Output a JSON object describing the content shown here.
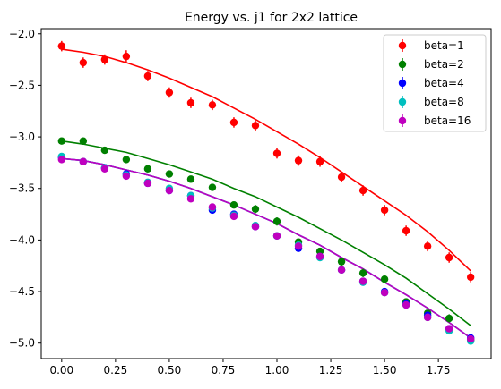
{
  "chart_data": {
    "type": "scatter",
    "title": "Energy vs. j1 for 2x2 lattice",
    "xlabel": "",
    "ylabel": "",
    "xlim": [
      -0.095,
      1.995
    ],
    "ylim": [
      -5.15,
      -1.95
    ],
    "xticks": [
      0.0,
      0.25,
      0.5,
      0.75,
      1.0,
      1.25,
      1.5,
      1.75
    ],
    "xtick_labels": [
      "0.00",
      "0.25",
      "0.50",
      "0.75",
      "1.00",
      "1.25",
      "1.50",
      "1.75"
    ],
    "yticks": [
      -2.0,
      -2.5,
      -3.0,
      -3.5,
      -4.0,
      -4.5,
      -5.0
    ],
    "ytick_labels": [
      "−2.0",
      "−2.5",
      "−3.0",
      "−3.5",
      "−4.0",
      "−4.5",
      "−5.0"
    ],
    "grid": false,
    "legend_position": "top-right",
    "x": [
      0.0,
      0.1,
      0.2,
      0.3,
      0.4,
      0.5,
      0.6,
      0.7,
      0.8,
      0.9,
      1.0,
      1.1,
      1.2,
      1.3,
      1.4,
      1.5,
      1.6,
      1.7,
      1.8,
      1.9
    ],
    "series": [
      {
        "name": "beta=1",
        "color": "#ff0000",
        "y": [
          -2.12,
          -2.28,
          -2.25,
          -2.22,
          -2.41,
          -2.57,
          -2.67,
          -2.69,
          -2.86,
          -2.89,
          -3.16,
          -3.23,
          -3.24,
          -3.39,
          -3.52,
          -3.71,
          -3.91,
          -4.06,
          -4.17,
          -4.36
        ],
        "yerr": [
          0.05,
          0.05,
          0.05,
          0.06,
          0.05,
          0.05,
          0.05,
          0.05,
          0.05,
          0.05,
          0.05,
          0.05,
          0.05,
          0.05,
          0.05,
          0.05,
          0.05,
          0.05,
          0.05,
          0.05
        ],
        "fit": [
          -2.15,
          -2.18,
          -2.22,
          -2.28,
          -2.35,
          -2.43,
          -2.52,
          -2.61,
          -2.72,
          -2.83,
          -2.95,
          -3.07,
          -3.2,
          -3.34,
          -3.48,
          -3.62,
          -3.76,
          -3.92,
          -4.1,
          -4.3
        ]
      },
      {
        "name": "beta=2",
        "color": "#008000",
        "y": [
          -3.04,
          -3.04,
          -3.13,
          -3.22,
          -3.31,
          -3.36,
          -3.41,
          -3.49,
          -3.66,
          -3.7,
          -3.82,
          -4.02,
          -4.11,
          -4.21,
          -4.32,
          -4.38,
          -4.6,
          -4.71,
          -4.76,
          -4.97
        ],
        "yerr": [
          0.03,
          0.03,
          0.03,
          0.03,
          0.03,
          0.03,
          0.03,
          0.03,
          0.03,
          0.04,
          0.04,
          0.03,
          0.03,
          0.04,
          0.04,
          0.03,
          0.03,
          0.03,
          0.04,
          0.04
        ],
        "fit": [
          -3.04,
          -3.07,
          -3.11,
          -3.15,
          -3.21,
          -3.27,
          -3.34,
          -3.41,
          -3.5,
          -3.58,
          -3.68,
          -3.78,
          -3.89,
          -4.0,
          -4.12,
          -4.24,
          -4.37,
          -4.52,
          -4.67,
          -4.83
        ]
      },
      {
        "name": "beta=4",
        "color": "#0000ff",
        "y": [
          -3.2,
          -3.24,
          -3.3,
          -3.36,
          -3.45,
          -3.52,
          -3.57,
          -3.71,
          -3.75,
          -3.87,
          -3.96,
          -4.08,
          -4.16,
          -4.29,
          -4.4,
          -4.5,
          -4.62,
          -4.73,
          -4.86,
          -4.95
        ],
        "yerr": [
          0.02,
          0.02,
          0.02,
          0.03,
          0.02,
          0.02,
          0.02,
          0.03,
          0.02,
          0.02,
          0.02,
          0.03,
          0.02,
          0.02,
          0.02,
          0.02,
          0.02,
          0.02,
          0.03,
          0.03
        ],
        "fit": [
          -3.21,
          -3.23,
          -3.27,
          -3.32,
          -3.37,
          -3.43,
          -3.5,
          -3.58,
          -3.66,
          -3.75,
          -3.84,
          -3.95,
          -4.05,
          -4.17,
          -4.28,
          -4.41,
          -4.53,
          -4.66,
          -4.8,
          -4.95
        ]
      },
      {
        "name": "beta=8",
        "color": "#00bfbf",
        "y": [
          -3.19,
          -3.24,
          -3.3,
          -3.37,
          -3.44,
          -3.5,
          -3.57,
          -3.69,
          -3.76,
          -3.86,
          -3.96,
          -4.05,
          -4.17,
          -4.29,
          -4.41,
          -4.51,
          -4.63,
          -4.75,
          -4.88,
          -4.98
        ],
        "yerr": [
          0.02,
          0.02,
          0.02,
          0.02,
          0.02,
          0.02,
          0.02,
          0.02,
          0.02,
          0.02,
          0.02,
          0.02,
          0.02,
          0.02,
          0.02,
          0.02,
          0.02,
          0.02,
          0.02,
          0.02
        ],
        "fit": [
          -3.21,
          -3.23,
          -3.27,
          -3.32,
          -3.37,
          -3.43,
          -3.5,
          -3.58,
          -3.66,
          -3.75,
          -3.84,
          -3.95,
          -4.05,
          -4.17,
          -4.28,
          -4.41,
          -4.53,
          -4.66,
          -4.8,
          -4.95
        ]
      },
      {
        "name": "beta=16",
        "color": "#bf00bf",
        "y": [
          -3.22,
          -3.24,
          -3.31,
          -3.38,
          -3.45,
          -3.52,
          -3.6,
          -3.68,
          -3.77,
          -3.87,
          -3.96,
          -4.06,
          -4.16,
          -4.29,
          -4.4,
          -4.51,
          -4.63,
          -4.75,
          -4.86,
          -4.96
        ],
        "yerr": [
          0.02,
          0.02,
          0.02,
          0.02,
          0.02,
          0.02,
          0.02,
          0.02,
          0.02,
          0.02,
          0.02,
          0.02,
          0.02,
          0.02,
          0.02,
          0.02,
          0.02,
          0.02,
          0.02,
          0.02
        ],
        "fit": [
          -3.21,
          -3.23,
          -3.27,
          -3.32,
          -3.37,
          -3.43,
          -3.5,
          -3.58,
          -3.66,
          -3.75,
          -3.84,
          -3.95,
          -4.05,
          -4.17,
          -4.28,
          -4.41,
          -4.53,
          -4.66,
          -4.8,
          -4.95
        ]
      }
    ]
  }
}
